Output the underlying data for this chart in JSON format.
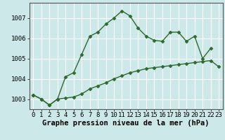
{
  "xlabel": "Graphe pression niveau de la mer (hPa)",
  "x": [
    0,
    1,
    2,
    3,
    4,
    5,
    6,
    7,
    8,
    9,
    10,
    11,
    12,
    13,
    14,
    15,
    16,
    17,
    18,
    19,
    20,
    21,
    22,
    23
  ],
  "line1": [
    1003.2,
    1003.0,
    1002.7,
    1003.0,
    1004.1,
    1004.3,
    1005.2,
    1006.1,
    1006.3,
    1006.7,
    1007.0,
    1007.35,
    1007.1,
    1006.5,
    1006.1,
    1005.9,
    1005.85,
    1006.3,
    1006.3,
    1005.85,
    1006.1,
    1005.0,
    1005.5,
    null
  ],
  "line2": [
    1003.2,
    1003.0,
    1002.7,
    1003.0,
    1003.05,
    1003.1,
    1003.25,
    1003.5,
    1003.65,
    1003.8,
    1004.0,
    1004.15,
    1004.3,
    1004.4,
    1004.5,
    1004.55,
    1004.6,
    1004.65,
    1004.7,
    1004.75,
    1004.8,
    1004.85,
    1004.9,
    1004.6
  ],
  "ylim_min": 1002.5,
  "ylim_max": 1007.75,
  "yticks": [
    1003,
    1004,
    1005,
    1006,
    1007
  ],
  "line_color": "#2d6a2d",
  "bg_color": "#cce8e8",
  "grid_color": "#ffffff",
  "marker": "D",
  "marker_size": 2.5,
  "line_width": 1.0,
  "xlabel_fontsize": 7.5,
  "tick_fontsize": 6.5
}
